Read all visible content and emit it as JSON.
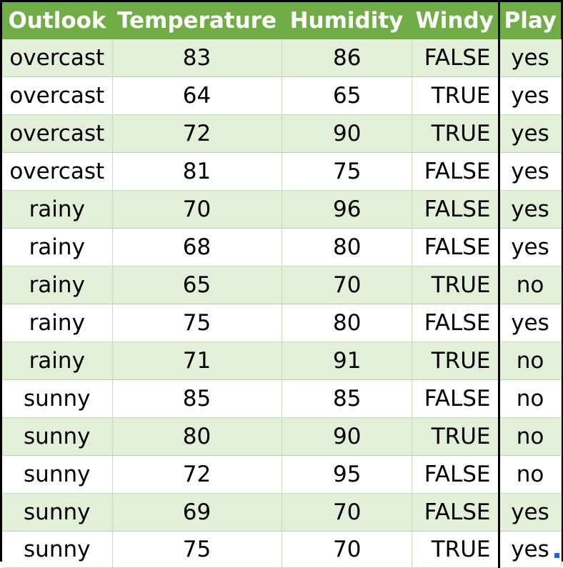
{
  "colors": {
    "header_bg": "#70ad47",
    "row_band": "#e2efd9",
    "row_plain": "#ffffff",
    "header_text": "#ffffff",
    "separator": "#000000",
    "fill_handle": "#2f62c9"
  },
  "table": {
    "headers": [
      "Outlook",
      "Temperature",
      "Humidity",
      "Windy",
      "Play"
    ],
    "rows": [
      {
        "outlook": "overcast",
        "temperature": "83",
        "humidity": "86",
        "windy": "FALSE",
        "play": "yes"
      },
      {
        "outlook": "overcast",
        "temperature": "64",
        "humidity": "65",
        "windy": "TRUE",
        "play": "yes"
      },
      {
        "outlook": "overcast",
        "temperature": "72",
        "humidity": "90",
        "windy": "TRUE",
        "play": "yes"
      },
      {
        "outlook": "overcast",
        "temperature": "81",
        "humidity": "75",
        "windy": "FALSE",
        "play": "yes"
      },
      {
        "outlook": "rainy",
        "temperature": "70",
        "humidity": "96",
        "windy": "FALSE",
        "play": "yes"
      },
      {
        "outlook": "rainy",
        "temperature": "68",
        "humidity": "80",
        "windy": "FALSE",
        "play": "yes"
      },
      {
        "outlook": "rainy",
        "temperature": "65",
        "humidity": "70",
        "windy": "TRUE",
        "play": "no"
      },
      {
        "outlook": "rainy",
        "temperature": "75",
        "humidity": "80",
        "windy": "FALSE",
        "play": "yes"
      },
      {
        "outlook": "rainy",
        "temperature": "71",
        "humidity": "91",
        "windy": "TRUE",
        "play": "no"
      },
      {
        "outlook": "sunny",
        "temperature": "85",
        "humidity": "85",
        "windy": "FALSE",
        "play": "no"
      },
      {
        "outlook": "sunny",
        "temperature": "80",
        "humidity": "90",
        "windy": "TRUE",
        "play": "no"
      },
      {
        "outlook": "sunny",
        "temperature": "72",
        "humidity": "95",
        "windy": "FALSE",
        "play": "no"
      },
      {
        "outlook": "sunny",
        "temperature": "69",
        "humidity": "70",
        "windy": "FALSE",
        "play": "yes"
      },
      {
        "outlook": "sunny",
        "temperature": "75",
        "humidity": "70",
        "windy": "TRUE",
        "play": "yes"
      }
    ]
  }
}
